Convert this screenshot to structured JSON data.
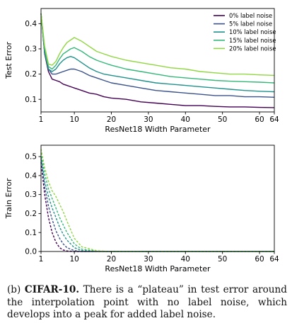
{
  "chart_data": [
    {
      "type": "line",
      "title": "",
      "xlabel": "ResNet18 Width Parameter",
      "ylabel": "Test Error",
      "xlim": [
        1,
        64
      ],
      "ylim": [
        0.05,
        0.46
      ],
      "xticks": [
        1,
        10,
        20,
        30,
        40,
        50,
        60,
        64
      ],
      "yticks": [
        0.1,
        0.2,
        0.3,
        0.4
      ],
      "ytick_labels": [
        "0.1",
        "0.2",
        "0.3",
        "0.4"
      ],
      "grid": false,
      "legend_position": "top-right",
      "series": [
        {
          "name": "0% label noise",
          "color": "#440154",
          "x": [
            1,
            2,
            3,
            4,
            5,
            6,
            7,
            8,
            9,
            10,
            12,
            14,
            16,
            18,
            20,
            24,
            28,
            32,
            36,
            40,
            44,
            48,
            52,
            56,
            60,
            64
          ],
          "y": [
            0.44,
            0.28,
            0.21,
            0.18,
            0.175,
            0.17,
            0.16,
            0.155,
            0.15,
            0.145,
            0.135,
            0.125,
            0.12,
            0.11,
            0.105,
            0.1,
            0.09,
            0.085,
            0.08,
            0.075,
            0.075,
            0.072,
            0.07,
            0.07,
            0.068,
            0.067
          ]
        },
        {
          "name": "5% label noise",
          "color": "#3b528b",
          "x": [
            1,
            2,
            3,
            4,
            5,
            6,
            7,
            8,
            9,
            10,
            12,
            14,
            16,
            18,
            20,
            24,
            28,
            32,
            36,
            40,
            44,
            48,
            52,
            56,
            60,
            64
          ],
          "y": [
            0.44,
            0.28,
            0.22,
            0.2,
            0.2,
            0.205,
            0.21,
            0.215,
            0.22,
            0.22,
            0.21,
            0.195,
            0.185,
            0.175,
            0.165,
            0.155,
            0.145,
            0.135,
            0.13,
            0.125,
            0.12,
            0.115,
            0.115,
            0.11,
            0.11,
            0.108
          ]
        },
        {
          "name": "10% label noise",
          "color": "#21918c",
          "x": [
            1,
            2,
            3,
            4,
            5,
            6,
            7,
            8,
            9,
            10,
            12,
            14,
            16,
            18,
            20,
            24,
            28,
            32,
            36,
            40,
            44,
            48,
            52,
            56,
            60,
            64
          ],
          "y": [
            0.44,
            0.29,
            0.22,
            0.21,
            0.22,
            0.24,
            0.255,
            0.265,
            0.27,
            0.265,
            0.245,
            0.225,
            0.21,
            0.2,
            0.195,
            0.185,
            0.175,
            0.165,
            0.16,
            0.155,
            0.15,
            0.145,
            0.14,
            0.135,
            0.132,
            0.13
          ]
        },
        {
          "name": "15% label noise",
          "color": "#35b779",
          "x": [
            1,
            2,
            3,
            4,
            5,
            6,
            7,
            8,
            9,
            10,
            12,
            14,
            16,
            18,
            20,
            24,
            28,
            32,
            36,
            40,
            44,
            48,
            52,
            56,
            60,
            64
          ],
          "y": [
            0.44,
            0.3,
            0.23,
            0.22,
            0.235,
            0.26,
            0.28,
            0.29,
            0.3,
            0.305,
            0.29,
            0.27,
            0.255,
            0.245,
            0.235,
            0.22,
            0.21,
            0.2,
            0.19,
            0.185,
            0.18,
            0.175,
            0.172,
            0.17,
            0.168,
            0.165
          ]
        },
        {
          "name": "20% label noise",
          "color": "#90d743",
          "x": [
            1,
            2,
            3,
            4,
            5,
            6,
            7,
            8,
            9,
            10,
            12,
            14,
            16,
            18,
            20,
            24,
            28,
            32,
            36,
            40,
            44,
            48,
            52,
            56,
            60,
            64
          ],
          "y": [
            0.44,
            0.31,
            0.24,
            0.235,
            0.25,
            0.28,
            0.305,
            0.325,
            0.335,
            0.345,
            0.33,
            0.31,
            0.29,
            0.28,
            0.27,
            0.255,
            0.245,
            0.235,
            0.225,
            0.22,
            0.21,
            0.205,
            0.2,
            0.2,
            0.197,
            0.195
          ]
        }
      ]
    },
    {
      "type": "line",
      "title": "",
      "xlabel": "ResNet18 Width Parameter",
      "ylabel": "Train Error",
      "xlim": [
        1,
        64
      ],
      "ylim": [
        0,
        0.56
      ],
      "xticks": [
        1,
        10,
        20,
        30,
        40,
        50,
        60,
        64
      ],
      "yticks": [
        0.0,
        0.1,
        0.2,
        0.3,
        0.4,
        0.5
      ],
      "ytick_labels": [
        "0.0",
        "0.1",
        "0.2",
        "0.3",
        "0.4",
        "0.5"
      ],
      "grid": false,
      "line_style": "dashed",
      "series": [
        {
          "name": "0% label noise",
          "color": "#440154",
          "x": [
            1,
            2,
            3,
            4,
            5,
            6,
            7,
            8,
            10,
            12,
            16,
            20,
            30,
            40,
            50,
            64
          ],
          "y": [
            0.47,
            0.3,
            0.18,
            0.1,
            0.05,
            0.02,
            0.008,
            0.003,
            0.0,
            0.0,
            0.0,
            0.0,
            0.0,
            0.0,
            0.0,
            0.0
          ]
        },
        {
          "name": "5% label noise",
          "color": "#3b528b",
          "x": [
            1,
            2,
            3,
            4,
            5,
            6,
            7,
            8,
            10,
            12,
            16,
            20,
            30,
            40,
            50,
            64
          ],
          "y": [
            0.49,
            0.34,
            0.24,
            0.17,
            0.11,
            0.07,
            0.04,
            0.02,
            0.005,
            0.0,
            0.0,
            0.0,
            0.0,
            0.0,
            0.0,
            0.0
          ]
        },
        {
          "name": "10% label noise",
          "color": "#21918c",
          "x": [
            1,
            2,
            3,
            4,
            5,
            6,
            7,
            8,
            10,
            12,
            16,
            20,
            30,
            40,
            50,
            64
          ],
          "y": [
            0.5,
            0.37,
            0.29,
            0.23,
            0.18,
            0.13,
            0.09,
            0.06,
            0.02,
            0.005,
            0.001,
            0.0,
            0.0,
            0.0,
            0.0,
            0.0
          ]
        },
        {
          "name": "15% label noise",
          "color": "#35b779",
          "x": [
            1,
            2,
            3,
            4,
            5,
            6,
            7,
            8,
            10,
            12,
            16,
            20,
            30,
            40,
            50,
            64
          ],
          "y": [
            0.52,
            0.41,
            0.33,
            0.28,
            0.23,
            0.18,
            0.14,
            0.1,
            0.04,
            0.012,
            0.002,
            0.0,
            0.0,
            0.0,
            0.0,
            0.0
          ]
        },
        {
          "name": "20% label noise",
          "color": "#90d743",
          "x": [
            1,
            2,
            3,
            4,
            5,
            6,
            7,
            8,
            10,
            12,
            16,
            20,
            30,
            40,
            50,
            64
          ],
          "y": [
            0.54,
            0.44,
            0.37,
            0.32,
            0.29,
            0.25,
            0.21,
            0.16,
            0.07,
            0.025,
            0.004,
            0.0,
            0.0,
            0.0,
            0.0,
            0.0
          ]
        }
      ]
    }
  ],
  "caption": {
    "label": "(b)",
    "bold": "CIFAR-10.",
    "text": "There is a “plateau” in test error around the interpolation point with no label noise, which develops into a peak for added label noise."
  }
}
